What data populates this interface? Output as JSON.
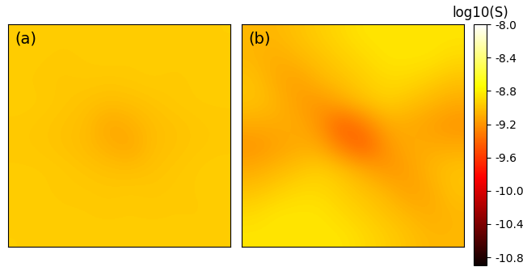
{
  "chart_data": [
    {
      "type": "heatmap",
      "label": "(a)",
      "tick_labels": false,
      "cells": [
        [
          -8.96,
          -8.95,
          -8.96,
          -8.95,
          -8.96,
          -8.95,
          -8.96,
          -8.95,
          -8.96,
          -8.95
        ],
        [
          -8.95,
          -8.96,
          -8.97,
          -8.96,
          -8.95,
          -8.96,
          -8.95,
          -8.96,
          -8.95,
          -8.96
        ],
        [
          -8.96,
          -8.97,
          -8.98,
          -8.97,
          -8.98,
          -8.97,
          -8.96,
          -8.97,
          -8.96,
          -8.95
        ],
        [
          -8.95,
          -8.96,
          -8.98,
          -9.0,
          -9.02,
          -9.01,
          -8.99,
          -8.97,
          -8.96,
          -8.96
        ],
        [
          -8.97,
          -8.98,
          -9.0,
          -9.02,
          -9.12,
          -9.08,
          -9.02,
          -9.0,
          -8.98,
          -8.97
        ],
        [
          -8.97,
          -8.98,
          -9.0,
          -9.03,
          -9.08,
          -9.12,
          -9.02,
          -9.0,
          -8.98,
          -8.97
        ],
        [
          -8.96,
          -8.96,
          -8.97,
          -8.99,
          -9.01,
          -9.02,
          -9.0,
          -8.98,
          -8.96,
          -8.95
        ],
        [
          -8.95,
          -8.96,
          -8.97,
          -8.97,
          -8.98,
          -8.97,
          -8.98,
          -8.97,
          -8.96,
          -8.96
        ],
        [
          -8.96,
          -8.95,
          -8.96,
          -8.96,
          -8.97,
          -8.96,
          -8.97,
          -8.96,
          -8.97,
          -8.95
        ],
        [
          -8.95,
          -8.96,
          -8.95,
          -8.96,
          -8.95,
          -8.96,
          -8.95,
          -8.96,
          -8.95,
          -8.96
        ]
      ]
    },
    {
      "type": "heatmap",
      "label": "(b)",
      "tick_labels": false,
      "cells": [
        [
          -9.05,
          -9.05,
          -9.0,
          -8.95,
          -8.9,
          -8.85,
          -8.85,
          -8.85,
          -8.85,
          -8.85
        ],
        [
          -9.05,
          -9.1,
          -9.05,
          -9.0,
          -8.95,
          -8.9,
          -8.85,
          -8.85,
          -8.85,
          -8.9
        ],
        [
          -9.0,
          -9.1,
          -9.15,
          -9.05,
          -9.0,
          -8.95,
          -8.9,
          -8.9,
          -8.95,
          -9.0
        ],
        [
          -9.0,
          -9.05,
          -9.15,
          -9.2,
          -9.1,
          -9.0,
          -8.95,
          -9.0,
          -9.05,
          -9.1
        ],
        [
          -9.1,
          -9.1,
          -9.1,
          -9.2,
          -9.45,
          -9.3,
          -9.1,
          -9.1,
          -9.15,
          -9.2
        ],
        [
          -9.2,
          -9.15,
          -9.1,
          -9.1,
          -9.3,
          -9.45,
          -9.2,
          -9.1,
          -9.1,
          -9.1
        ],
        [
          -9.1,
          -9.05,
          -9.0,
          -8.95,
          -9.0,
          -9.1,
          -9.2,
          -9.15,
          -9.05,
          -9.0
        ],
        [
          -9.0,
          -8.95,
          -8.9,
          -8.9,
          -8.95,
          -9.0,
          -9.05,
          -9.15,
          -9.1,
          -9.0
        ],
        [
          -8.9,
          -8.85,
          -8.85,
          -8.85,
          -8.9,
          -8.95,
          -9.0,
          -9.05,
          -9.1,
          -9.05
        ],
        [
          -8.85,
          -8.85,
          -8.85,
          -8.85,
          -8.85,
          -8.9,
          -8.95,
          -9.0,
          -9.05,
          -9.05
        ]
      ]
    }
  ],
  "colorbar": {
    "title": "log10(S)",
    "range": [
      -10.9,
      -8.0
    ],
    "color": "hot",
    "ticks": [
      -8.0,
      -8.4,
      -8.8,
      -9.2,
      -9.6,
      -10.0,
      -10.4,
      -10.8
    ]
  }
}
